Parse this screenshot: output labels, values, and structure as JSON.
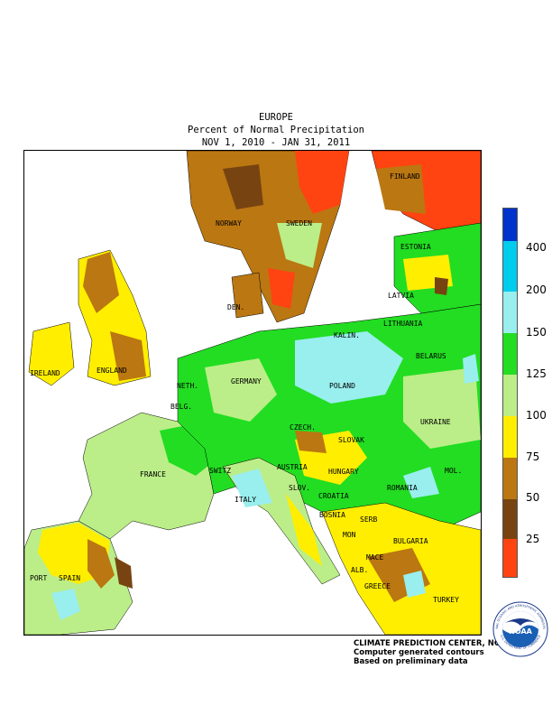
{
  "header": {
    "region": "EUROPE",
    "product": "Percent of Normal Precipitation",
    "period": "NOV  1, 2010 - JAN 31, 2011"
  },
  "map": {
    "countries": {
      "norway": "NORWAY",
      "sweden": "SWEDEN",
      "finland": "FINLAND",
      "estonia": "ESTONIA",
      "latvia": "LATVIA",
      "lithuania": "LITHUANIA",
      "kalin": "KALIN.",
      "belarus": "BELARUS",
      "den": "DEN.",
      "ireland": "IRELAND",
      "england": "ENGLAND",
      "neth": "NETH.",
      "belg": "BELG.",
      "germany": "GERMANY",
      "poland": "POLAND",
      "ukraine": "UKRAINE",
      "czech": "CZECH.",
      "slovak": "SLOVAK",
      "austria": "AUSTRIA",
      "hungary": "HUNGARY",
      "mol": "MOL.",
      "romania": "ROMANIA",
      "france": "FRANCE",
      "switz": "SWITZ",
      "slov": "SLOV.",
      "croatia": "CROATIA",
      "bosnia": "BOSNIA",
      "serb": "SERB",
      "italy": "ITALY",
      "mon": "MON",
      "bulgaria": "BULGARIA",
      "mace": "MACE",
      "alb": "ALB.",
      "greece": "GREECE",
      "turkey": "TURKEY",
      "port": "PORT",
      "spain": "SPAIN"
    }
  },
  "legend": {
    "labels": [
      "400",
      "200",
      "150",
      "125",
      "100",
      "75",
      "50",
      "25"
    ],
    "colors": {
      "above_400": "#0033cc",
      "200_400": "#00ccee",
      "150_200": "#99eeee",
      "125_150": "#22dd22",
      "100_125": "#bbee88",
      "75_100": "#ffee00",
      "50_75": "#bb7711",
      "25_50": "#774411",
      "below_25": "#ff4411"
    }
  },
  "credits": {
    "line1": "CLIMATE PREDICTION CENTER, NOAA",
    "line2": "Computer generated contours",
    "line3": "Based on preliminary data"
  },
  "logo": {
    "text": "NOAA",
    "ring_top": "NATIONAL OCEANIC AND ATMOSPHERIC ADMINISTRATION",
    "ring_bottom": "U.S. DEPARTMENT OF COMMERCE"
  }
}
